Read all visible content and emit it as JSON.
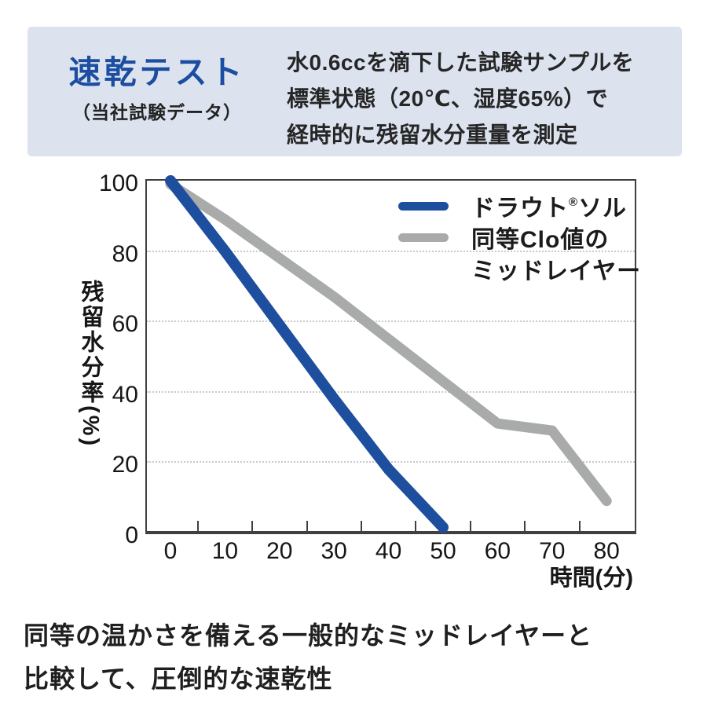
{
  "header": {
    "title": "速乾テスト",
    "subtitle": "（当社試験データ）",
    "description_lines": [
      "水0.6ccを滴下した試験サンプルを",
      "標準状態（20℃、湿度65%）で",
      "経時的に残留水分重量を測定"
    ],
    "bg_color": "#dce3ef",
    "title_color": "#1c4da0"
  },
  "legend": [
    {
      "pre": "ドラウト",
      "sup": "®",
      "post": "ソル",
      "color": "#1d4f9e"
    },
    {
      "label": "同等Clo値の",
      "label2": "ミッドレイヤー",
      "color": "#a9aaaa"
    }
  ],
  "chart_data": {
    "type": "line",
    "title": "",
    "xlabel": "時間(分)",
    "ylabel": "残留水分率(%)",
    "xlim": [
      0,
      85
    ],
    "ylim": [
      0,
      100
    ],
    "x_ticks": [
      0,
      10,
      20,
      30,
      40,
      50,
      60,
      70,
      80
    ],
    "x_minor_ticks": [
      5,
      15,
      25,
      35,
      45,
      55,
      65,
      75
    ],
    "y_ticks": [
      0,
      20,
      40,
      60,
      80,
      100
    ],
    "gridlines_y": [
      20,
      40,
      60,
      80
    ],
    "grid_style": "dotted",
    "legend_position": "top-right",
    "series": [
      {
        "name": "ドラウト®ソル",
        "color": "#1d4f9e",
        "x": [
          0,
          10,
          20,
          30,
          40,
          50
        ],
        "values": [
          100,
          80,
          59,
          38,
          18,
          1.5
        ]
      },
      {
        "name": "同等Clo値のミッドレイヤー",
        "color": "#a9aaaa",
        "x": [
          0,
          10,
          20,
          30,
          40,
          50,
          60,
          70,
          80
        ],
        "values": [
          99,
          89,
          78,
          67,
          55,
          43,
          31,
          29,
          9
        ]
      }
    ]
  },
  "footer": {
    "line1": "同等の温かさを備える一般的なミッドレイヤーと",
    "line2": "比較して、圧倒的な速乾性"
  }
}
